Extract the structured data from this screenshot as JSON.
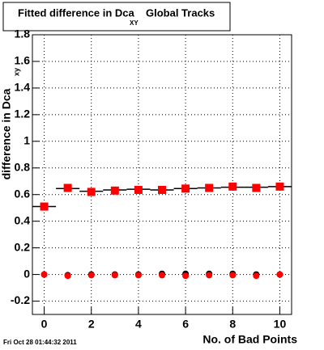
{
  "chart_data": {
    "type": "scatter",
    "title": "Fitted difference in Dca",
    "title_subscript": "XY",
    "title_suffix": "Global Tracks",
    "xlabel": "No. of Bad Points",
    "ylabel": "difference in Dca",
    "ylabel_subscript": "xy",
    "timestamp": "Fri Oct 28 01:44:32 2011",
    "x": [
      0,
      1,
      2,
      3,
      4,
      5,
      6,
      7,
      8,
      9,
      10
    ],
    "series": [
      {
        "color": "#000000",
        "marker": "step",
        "values": [
          0.51,
          0.645,
          0.625,
          0.635,
          0.64,
          0.635,
          0.645,
          0.65,
          0.655,
          0.655,
          0.66
        ]
      },
      {
        "color": "#ff0000",
        "marker": "square",
        "values": [
          0.51,
          0.65,
          0.62,
          0.63,
          0.635,
          0.635,
          0.645,
          0.65,
          0.66,
          0.65,
          0.66
        ]
      },
      {
        "color": "#000000",
        "marker": "circle",
        "values": [
          0,
          -0.005,
          0,
          0,
          0,
          0.005,
          0.005,
          0.005,
          0.005,
          0,
          0
        ]
      },
      {
        "color": "#ff0000",
        "marker": "circle",
        "values": [
          0,
          -0.01,
          -0.005,
          -0.005,
          -0.005,
          -0.005,
          -0.01,
          -0.005,
          -0.005,
          -0.01,
          0
        ]
      }
    ],
    "xlim": [
      -0.5,
      10.5
    ],
    "xticks": [
      0,
      2,
      4,
      6,
      8,
      10
    ],
    "ylim": [
      -0.3,
      1.8
    ],
    "yticks": [
      -0.2,
      0,
      0.2,
      0.4,
      0.6,
      0.8,
      1,
      1.2,
      1.4,
      1.6,
      1.8
    ],
    "grid": true
  }
}
